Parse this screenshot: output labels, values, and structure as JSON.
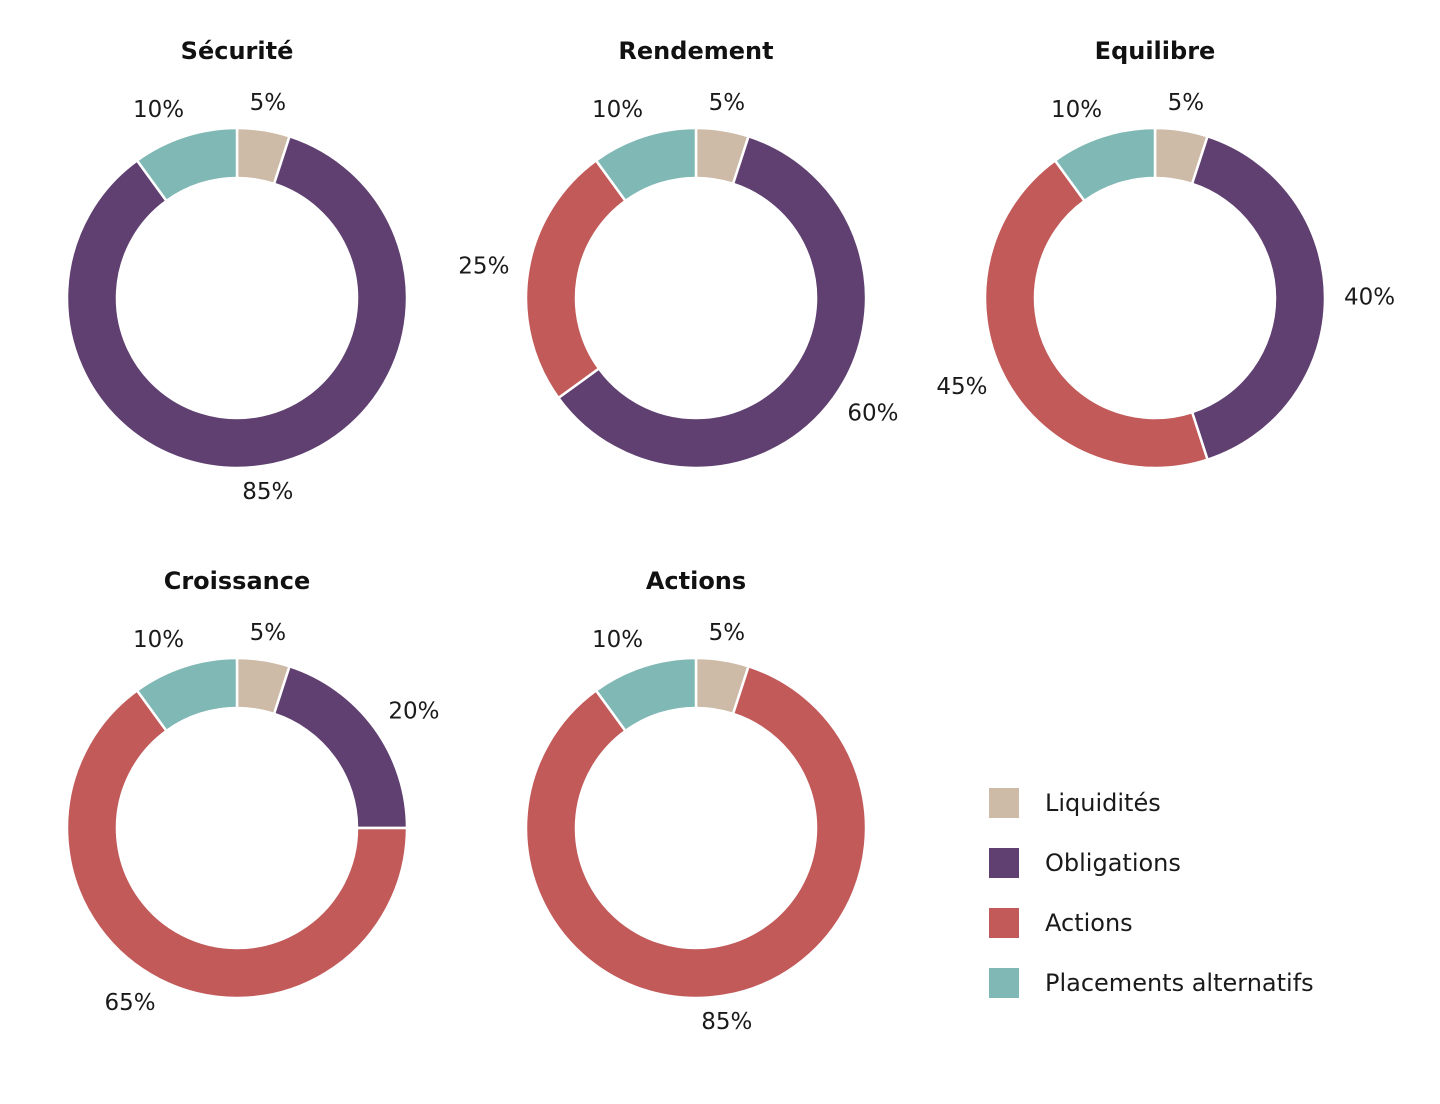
{
  "colors": {
    "liquidites": "#cdbba8",
    "obligations": "#5f4070",
    "actions": "#c25a5a",
    "alternatifs": "#7fb8b5"
  },
  "legend": [
    {
      "key": "liquidites",
      "label": "Liquidités"
    },
    {
      "key": "obligations",
      "label": "Obligations"
    },
    {
      "key": "actions",
      "label": "Actions"
    },
    {
      "key": "alternatifs",
      "label": "Placements alternatifs"
    }
  ],
  "chart_data": [
    {
      "type": "pie",
      "title": "Sécurité",
      "slices": [
        {
          "key": "liquidites",
          "value": 5,
          "label": "5%"
        },
        {
          "key": "obligations",
          "value": 85,
          "label": "85%"
        },
        {
          "key": "actions",
          "value": 0,
          "label": ""
        },
        {
          "key": "alternatifs",
          "value": 10,
          "label": "10%"
        }
      ]
    },
    {
      "type": "pie",
      "title": "Rendement",
      "slices": [
        {
          "key": "liquidites",
          "value": 5,
          "label": "5%"
        },
        {
          "key": "obligations",
          "value": 60,
          "label": "60%"
        },
        {
          "key": "actions",
          "value": 25,
          "label": "25%"
        },
        {
          "key": "alternatifs",
          "value": 10,
          "label": "10%"
        }
      ]
    },
    {
      "type": "pie",
      "title": "Equilibre",
      "slices": [
        {
          "key": "liquidites",
          "value": 5,
          "label": "5%"
        },
        {
          "key": "obligations",
          "value": 40,
          "label": "40%"
        },
        {
          "key": "actions",
          "value": 45,
          "label": "45%"
        },
        {
          "key": "alternatifs",
          "value": 10,
          "label": "10%"
        }
      ]
    },
    {
      "type": "pie",
      "title": "Croissance",
      "slices": [
        {
          "key": "liquidites",
          "value": 5,
          "label": "5%"
        },
        {
          "key": "obligations",
          "value": 20,
          "label": "20%"
        },
        {
          "key": "actions",
          "value": 65,
          "label": "65%"
        },
        {
          "key": "alternatifs",
          "value": 10,
          "label": "10%"
        }
      ]
    },
    {
      "type": "pie",
      "title": "Actions",
      "slices": [
        {
          "key": "liquidites",
          "value": 5,
          "label": "5%"
        },
        {
          "key": "obligations",
          "value": 0,
          "label": ""
        },
        {
          "key": "actions",
          "value": 85,
          "label": "85%"
        },
        {
          "key": "alternatifs",
          "value": 10,
          "label": "10%"
        }
      ]
    }
  ]
}
